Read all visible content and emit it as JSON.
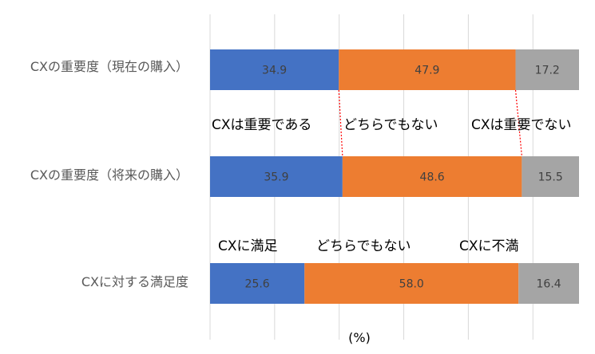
{
  "chart_data": {
    "type": "bar",
    "orientation": "horizontal",
    "stacked": true,
    "categories": [
      "CXの重要度（現在の購入）",
      "CXの重要度（将来の購入）",
      "CXに対する満足度"
    ],
    "series": [
      {
        "values": [
          34.9,
          35.9,
          25.6
        ],
        "labels": [
          "34.9",
          "35.9",
          "25.6"
        ],
        "color": "#4472C4"
      },
      {
        "values": [
          47.9,
          48.6,
          58.0
        ],
        "labels": [
          "47.9",
          "48.6",
          "58.0"
        ],
        "color": "#ED7D31"
      },
      {
        "values": [
          17.2,
          15.5,
          16.4
        ],
        "labels": [
          "17.2",
          "15.5",
          "16.4"
        ],
        "color": "#A5A5A5"
      }
    ],
    "xlim": [
      0,
      100
    ],
    "grid": true,
    "legend": "none",
    "xlabel": "(%)",
    "annotations": {
      "importance": [
        "CXは重要である",
        "どちらでもない",
        "CXは重要でない"
      ],
      "satisfaction": [
        "CXに満足",
        "どちらでもない",
        "CXに不満"
      ]
    },
    "connector_lines": {
      "color": "#FF0000",
      "style": "dotted"
    }
  }
}
